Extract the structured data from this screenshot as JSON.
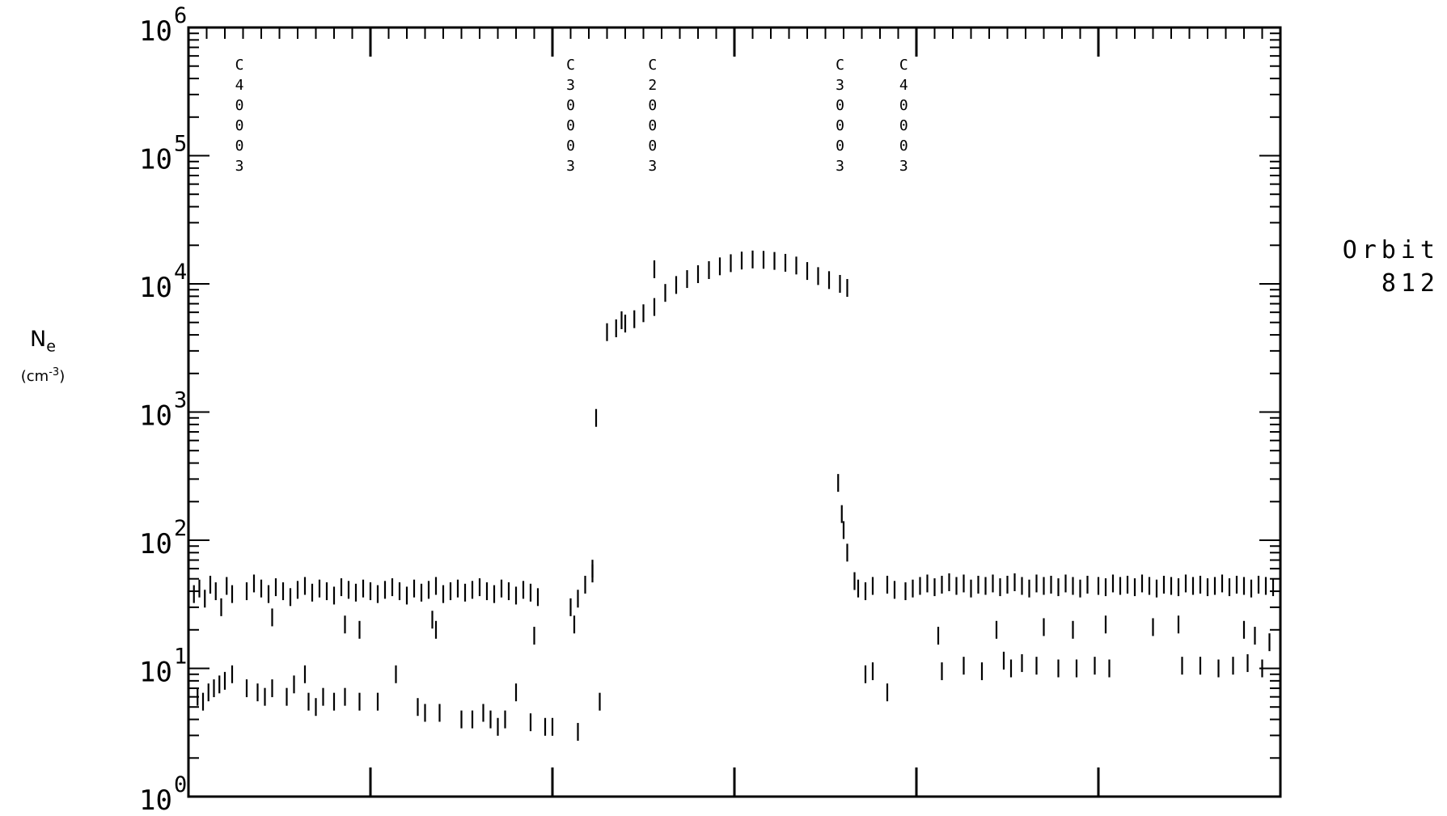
{
  "chart_data": {
    "type": "scatter",
    "marker": "vertical-dash",
    "y_scale": "log",
    "ylim": [
      1,
      1000000
    ],
    "y_ticks": [
      {
        "base": "10",
        "exp": "0"
      },
      {
        "base": "10",
        "exp": "1"
      },
      {
        "base": "10",
        "exp": "2"
      },
      {
        "base": "10",
        "exp": "3"
      },
      {
        "base": "10",
        "exp": "4"
      },
      {
        "base": "10",
        "exp": "5"
      },
      {
        "base": "10",
        "exp": "6"
      }
    ],
    "ylabel": {
      "main": "N",
      "sub": "e",
      "unit_prefix": "(cm",
      "unit_exp": "-3",
      "unit_suffix": ")"
    },
    "xlim": [
      0,
      6
    ],
    "x_major_ticks": [
      1,
      2,
      3,
      4,
      5
    ],
    "annotation": {
      "line1": "Orbit",
      "line2": "812"
    },
    "vertical_labels": [
      {
        "x": 0.28,
        "chars": [
          "C",
          "4",
          "0",
          "0",
          "0",
          "3"
        ]
      },
      {
        "x": 2.1,
        "chars": [
          "C",
          "3",
          "0",
          "0",
          "0",
          "3"
        ]
      },
      {
        "x": 2.55,
        "chars": [
          "C",
          "2",
          "0",
          "0",
          "0",
          "3"
        ]
      },
      {
        "x": 3.58,
        "chars": [
          "C",
          "3",
          "0",
          "0",
          "0",
          "3"
        ]
      },
      {
        "x": 3.93,
        "chars": [
          "C",
          "4",
          "0",
          "0",
          "0",
          "3"
        ]
      }
    ],
    "series": [
      {
        "role": "upper-band",
        "points": [
          [
            0.03,
            38
          ],
          [
            0.06,
            42
          ],
          [
            0.09,
            35
          ],
          [
            0.12,
            45
          ],
          [
            0.15,
            40
          ],
          [
            0.18,
            30
          ],
          [
            0.21,
            44
          ],
          [
            0.24,
            38
          ],
          [
            0.32,
            40
          ],
          [
            0.36,
            46
          ],
          [
            0.4,
            42
          ],
          [
            0.44,
            38
          ],
          [
            0.48,
            43
          ],
          [
            0.52,
            40
          ],
          [
            0.56,
            36
          ],
          [
            0.6,
            41
          ],
          [
            0.64,
            44
          ],
          [
            0.68,
            39
          ],
          [
            0.72,
            42
          ],
          [
            0.76,
            40
          ],
          [
            0.8,
            37
          ],
          [
            0.84,
            43
          ],
          [
            0.88,
            41
          ],
          [
            0.92,
            39
          ],
          [
            0.96,
            42
          ],
          [
            1.0,
            40
          ],
          [
            1.04,
            38
          ],
          [
            1.08,
            41
          ],
          [
            1.12,
            43
          ],
          [
            1.16,
            40
          ],
          [
            1.2,
            37
          ],
          [
            1.24,
            42
          ],
          [
            1.28,
            39
          ],
          [
            1.32,
            41
          ],
          [
            1.36,
            44
          ],
          [
            1.4,
            38
          ],
          [
            1.44,
            40
          ],
          [
            1.48,
            42
          ],
          [
            1.52,
            39
          ],
          [
            1.56,
            41
          ],
          [
            1.6,
            43
          ],
          [
            1.64,
            40
          ],
          [
            1.68,
            38
          ],
          [
            1.72,
            42
          ],
          [
            1.76,
            40
          ],
          [
            1.8,
            37
          ],
          [
            1.84,
            41
          ],
          [
            1.88,
            39
          ],
          [
            1.92,
            36
          ],
          [
            2.1,
            30
          ],
          [
            2.14,
            35
          ],
          [
            2.18,
            45
          ],
          [
            2.22,
            55
          ],
          [
            3.68,
            42
          ],
          [
            3.72,
            40
          ],
          [
            3.76,
            44
          ],
          [
            3.84,
            45
          ],
          [
            3.88,
            41
          ],
          [
            3.94,
            40
          ],
          [
            3.98,
            42
          ],
          [
            4.02,
            44
          ],
          [
            4.06,
            46
          ],
          [
            4.1,
            43
          ],
          [
            4.14,
            45
          ],
          [
            4.18,
            47
          ],
          [
            4.22,
            44
          ],
          [
            4.26,
            46
          ],
          [
            4.3,
            42
          ],
          [
            4.34,
            45
          ],
          [
            4.38,
            44
          ],
          [
            4.42,
            46
          ],
          [
            4.46,
            43
          ],
          [
            4.5,
            45
          ],
          [
            4.54,
            47
          ],
          [
            4.58,
            44
          ],
          [
            4.62,
            42
          ],
          [
            4.66,
            46
          ],
          [
            4.7,
            44
          ],
          [
            4.74,
            45
          ],
          [
            4.78,
            43
          ],
          [
            4.82,
            46
          ],
          [
            4.86,
            44
          ],
          [
            4.9,
            42
          ],
          [
            4.94,
            45
          ],
          [
            5.0,
            44
          ],
          [
            5.04,
            43
          ],
          [
            5.08,
            46
          ],
          [
            5.12,
            44
          ],
          [
            5.16,
            45
          ],
          [
            5.2,
            43
          ],
          [
            5.24,
            46
          ],
          [
            5.28,
            44
          ],
          [
            5.32,
            42
          ],
          [
            5.36,
            45
          ],
          [
            5.4,
            44
          ],
          [
            5.44,
            43
          ],
          [
            5.48,
            46
          ],
          [
            5.52,
            44
          ],
          [
            5.56,
            45
          ],
          [
            5.6,
            43
          ],
          [
            5.64,
            44
          ],
          [
            5.68,
            46
          ],
          [
            5.72,
            43
          ],
          [
            5.76,
            45
          ],
          [
            5.8,
            44
          ],
          [
            5.84,
            42
          ],
          [
            5.88,
            45
          ],
          [
            5.92,
            44
          ],
          [
            5.96,
            43
          ]
        ]
      },
      {
        "role": "upper-band-low-outliers",
        "points": [
          [
            0.46,
            25
          ],
          [
            0.86,
            22
          ],
          [
            0.94,
            20
          ],
          [
            1.34,
            24
          ],
          [
            1.36,
            20
          ],
          [
            1.9,
            18
          ],
          [
            2.12,
            22
          ],
          [
            4.12,
            18
          ],
          [
            4.44,
            20
          ],
          [
            4.7,
            21
          ],
          [
            4.86,
            20
          ],
          [
            5.04,
            22
          ],
          [
            5.3,
            21
          ],
          [
            5.44,
            22
          ],
          [
            5.8,
            20
          ],
          [
            5.86,
            18
          ],
          [
            5.94,
            16
          ]
        ]
      },
      {
        "role": "lower-band",
        "points": [
          [
            0.05,
            6
          ],
          [
            0.08,
            5.5
          ],
          [
            0.11,
            6.5
          ],
          [
            0.14,
            7
          ],
          [
            0.17,
            7.5
          ],
          [
            0.2,
            8
          ],
          [
            0.24,
            9
          ],
          [
            0.32,
            7
          ],
          [
            0.38,
            6.5
          ],
          [
            0.42,
            6
          ],
          [
            0.46,
            7
          ],
          [
            0.54,
            6
          ],
          [
            0.58,
            7.5
          ],
          [
            0.64,
            9
          ],
          [
            0.66,
            5.5
          ],
          [
            0.7,
            5
          ],
          [
            0.74,
            6
          ],
          [
            0.8,
            5.5
          ],
          [
            0.86,
            6
          ],
          [
            0.94,
            5.5
          ],
          [
            1.04,
            5.5
          ],
          [
            1.14,
            9
          ],
          [
            1.26,
            5
          ],
          [
            1.3,
            4.5
          ],
          [
            1.38,
            4.5
          ],
          [
            1.5,
            4
          ],
          [
            1.56,
            4
          ],
          [
            1.62,
            4.5
          ],
          [
            1.66,
            4
          ],
          [
            1.7,
            3.5
          ],
          [
            1.74,
            4
          ],
          [
            1.8,
            6.5
          ],
          [
            1.88,
            3.8
          ],
          [
            1.96,
            3.5
          ],
          [
            2.0,
            3.5
          ],
          [
            2.14,
            3.2
          ],
          [
            2.26,
            5.5
          ],
          [
            3.72,
            9
          ],
          [
            3.76,
            9.5
          ],
          [
            3.84,
            6.5
          ],
          [
            4.14,
            9.5
          ],
          [
            4.26,
            10.5
          ],
          [
            4.36,
            9.5
          ],
          [
            4.48,
            11.5
          ],
          [
            4.52,
            10
          ],
          [
            4.58,
            11
          ],
          [
            4.66,
            10.5
          ],
          [
            4.78,
            10
          ],
          [
            4.88,
            10
          ],
          [
            4.98,
            10.5
          ],
          [
            5.06,
            10
          ],
          [
            5.46,
            10.5
          ],
          [
            5.56,
            10.5
          ],
          [
            5.66,
            10
          ],
          [
            5.74,
            10.5
          ],
          [
            5.82,
            11
          ],
          [
            5.9,
            10
          ]
        ]
      },
      {
        "role": "plateau",
        "points": [
          [
            2.3,
            4200
          ],
          [
            2.35,
            4500
          ],
          [
            2.4,
            4900
          ],
          [
            2.45,
            5300
          ],
          [
            2.5,
            5900
          ],
          [
            2.56,
            6600
          ],
          [
            2.62,
            8500
          ],
          [
            2.68,
            9800
          ],
          [
            2.74,
            10900
          ],
          [
            2.8,
            11900
          ],
          [
            2.86,
            12800
          ],
          [
            2.92,
            13700
          ],
          [
            2.98,
            14500
          ],
          [
            3.04,
            15200
          ],
          [
            3.1,
            15500
          ],
          [
            3.16,
            15400
          ],
          [
            3.22,
            15100
          ],
          [
            3.28,
            14600
          ],
          [
            3.34,
            13900
          ],
          [
            3.4,
            12600
          ],
          [
            3.46,
            11500
          ],
          [
            3.52,
            10700
          ],
          [
            3.58,
            10000
          ],
          [
            3.62,
            9300
          ]
        ]
      },
      {
        "role": "transition",
        "points": [
          [
            2.24,
            900
          ],
          [
            2.22,
            60
          ],
          [
            3.57,
            280
          ],
          [
            3.59,
            160
          ],
          [
            3.6,
            120
          ],
          [
            3.62,
            80
          ],
          [
            3.66,
            48
          ],
          [
            2.38,
            5200
          ],
          [
            2.56,
            13000
          ]
        ]
      }
    ]
  }
}
